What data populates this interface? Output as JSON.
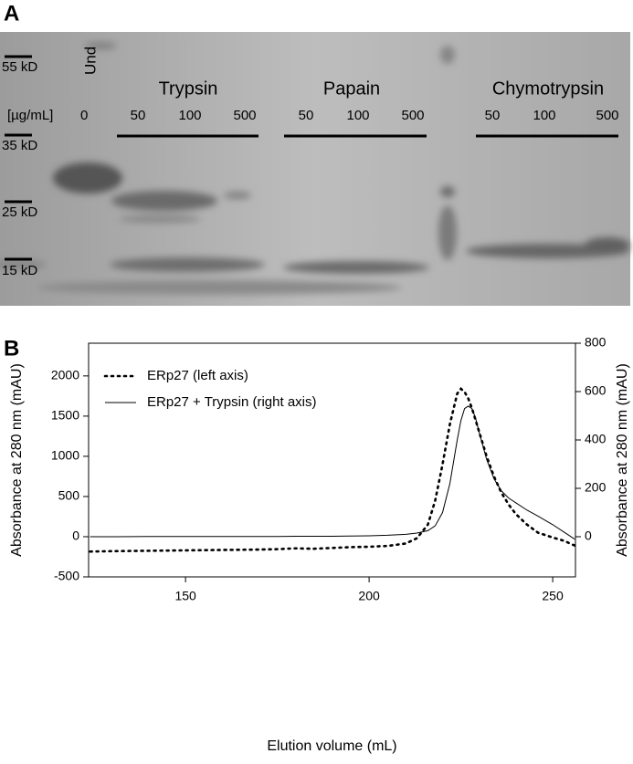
{
  "panel_a": {
    "label": "A",
    "lane_header": "Und",
    "unit": "[µg/mL]",
    "control_dose": "0",
    "markers": [
      "55 kD",
      "35 kD",
      "25 kD",
      "15 kD"
    ],
    "groups": [
      {
        "name": "Trypsin",
        "doses": [
          "50",
          "100",
          "500"
        ]
      },
      {
        "name": "Papain",
        "doses": [
          "50",
          "100",
          "500"
        ]
      },
      {
        "name": "Chymotrypsin",
        "doses": [
          "50",
          "100",
          "500"
        ]
      }
    ]
  },
  "panel_b": {
    "label": "B"
  },
  "chart_data": {
    "type": "line",
    "xlabel": "Elution volume (mL)",
    "ylabel": "Absorbance at 280 nm (mAU)",
    "y2label": "Absorbance at 280 nm (mAU)",
    "x": [
      124,
      130,
      140,
      150,
      160,
      170,
      175,
      180,
      185,
      190,
      195,
      200,
      205,
      210,
      213,
      216,
      218,
      220,
      222,
      224,
      225,
      226,
      227,
      228,
      229,
      230,
      232,
      234,
      236,
      238,
      240,
      243,
      246,
      250,
      253,
      256
    ],
    "xlim": [
      123.6,
      256.2
    ],
    "xticks": [
      150,
      200,
      250
    ],
    "ylim": [
      -500,
      2407
    ],
    "yticks": [
      -500,
      0,
      500,
      1000,
      1500,
      2000
    ],
    "y2lim": [
      -166,
      800
    ],
    "y2ticks": [
      0,
      200,
      400,
      600,
      800
    ],
    "legend": "upper left",
    "series": [
      {
        "name": "ERp27 (left axis)",
        "color": "#000000",
        "dash": "dotted",
        "values": [
          -185,
          -180,
          -175,
          -170,
          -165,
          -160,
          -155,
          -145,
          -150,
          -140,
          -130,
          -125,
          -115,
          -85,
          -20,
          150,
          450,
          900,
          1400,
          1780,
          1840,
          1800,
          1720,
          1600,
          1450,
          1300,
          1000,
          750,
          550,
          400,
          280,
          150,
          50,
          -10,
          -50,
          -110
        ]
      },
      {
        "name": "ERp27 + Trypsin (right axis)",
        "color": "#000000",
        "dash": "solid",
        "axis": "y2",
        "values": [
          0,
          0,
          1,
          1,
          1,
          1,
          1,
          2,
          2,
          2,
          3,
          4,
          6,
          10,
          15,
          25,
          45,
          100,
          220,
          400,
          480,
          530,
          540,
          530,
          490,
          430,
          320,
          240,
          190,
          160,
          140,
          110,
          85,
          50,
          20,
          -10
        ]
      }
    ]
  }
}
